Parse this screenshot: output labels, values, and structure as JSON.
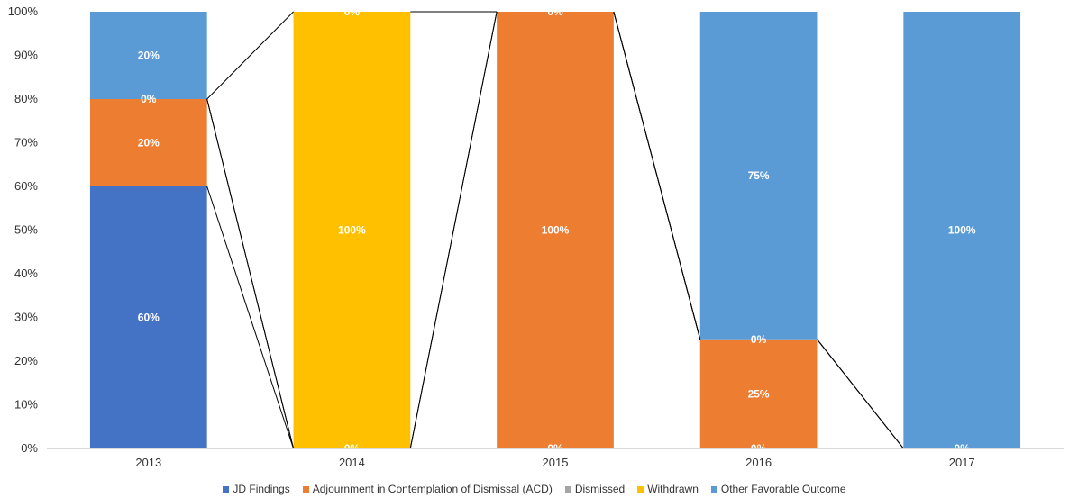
{
  "chart_data": {
    "type": "bar",
    "stacked": true,
    "title": "",
    "xlabel": "",
    "ylabel": "",
    "ylim": [
      0,
      100
    ],
    "y_ticks": [
      "0%",
      "10%",
      "20%",
      "30%",
      "40%",
      "50%",
      "60%",
      "70%",
      "80%",
      "90%",
      "100%"
    ],
    "categories": [
      "2013",
      "2014",
      "2015",
      "2016",
      "2017"
    ],
    "series": [
      {
        "name": "JD Findings",
        "color": "#4472C4",
        "values": [
          60,
          0,
          0,
          0,
          0
        ]
      },
      {
        "name": "Adjournment in Contemplation of Dismissal (ACD)",
        "color": "#ED7D31",
        "values": [
          20,
          0,
          100,
          25,
          0
        ]
      },
      {
        "name": "Dismissed",
        "color": "#A5A5A5",
        "values": [
          0,
          0,
          0,
          0,
          0
        ]
      },
      {
        "name": "Withdrawn",
        "color": "#FFC000",
        "values": [
          0,
          100,
          0,
          0,
          0
        ]
      },
      {
        "name": "Other Favorable Outcome",
        "color": "#5B9BD5",
        "values": [
          20,
          0,
          0,
          75,
          100
        ]
      }
    ],
    "data_labels": [
      {
        "category": "2013",
        "series": "JD Findings",
        "text": "60%"
      },
      {
        "category": "2013",
        "series": "Adjournment in Contemplation of Dismissal (ACD)",
        "text": "20%"
      },
      {
        "category": "2013",
        "series": "Withdrawn",
        "text": "0%"
      },
      {
        "category": "2013",
        "series": "Other Favorable Outcome",
        "text": "20%"
      },
      {
        "category": "2014",
        "series": "JD Findings",
        "text": "0%"
      },
      {
        "category": "2014",
        "series": "Withdrawn",
        "text": "100%"
      },
      {
        "category": "2014",
        "series": "Other Favorable Outcome",
        "text": "0%"
      },
      {
        "category": "2015",
        "series": "JD Findings",
        "text": "0%"
      },
      {
        "category": "2015",
        "series": "Adjournment in Contemplation of Dismissal (ACD)",
        "text": "100%"
      },
      {
        "category": "2015",
        "series": "Other Favorable Outcome",
        "text": "0%"
      },
      {
        "category": "2016",
        "series": "JD Findings",
        "text": "0%"
      },
      {
        "category": "2016",
        "series": "Adjournment in Contemplation of Dismissal (ACD)",
        "text": "25%"
      },
      {
        "category": "2016",
        "series": "Withdrawn",
        "text": "0%"
      },
      {
        "category": "2016",
        "series": "Other Favorable Outcome",
        "text": "75%"
      },
      {
        "category": "2017",
        "series": "JD Findings",
        "text": "0%"
      },
      {
        "category": "2017",
        "series": "Other Favorable Outcome",
        "text": "100%"
      }
    ],
    "series_lines": true,
    "grid": false,
    "legend_position": "bottom"
  }
}
